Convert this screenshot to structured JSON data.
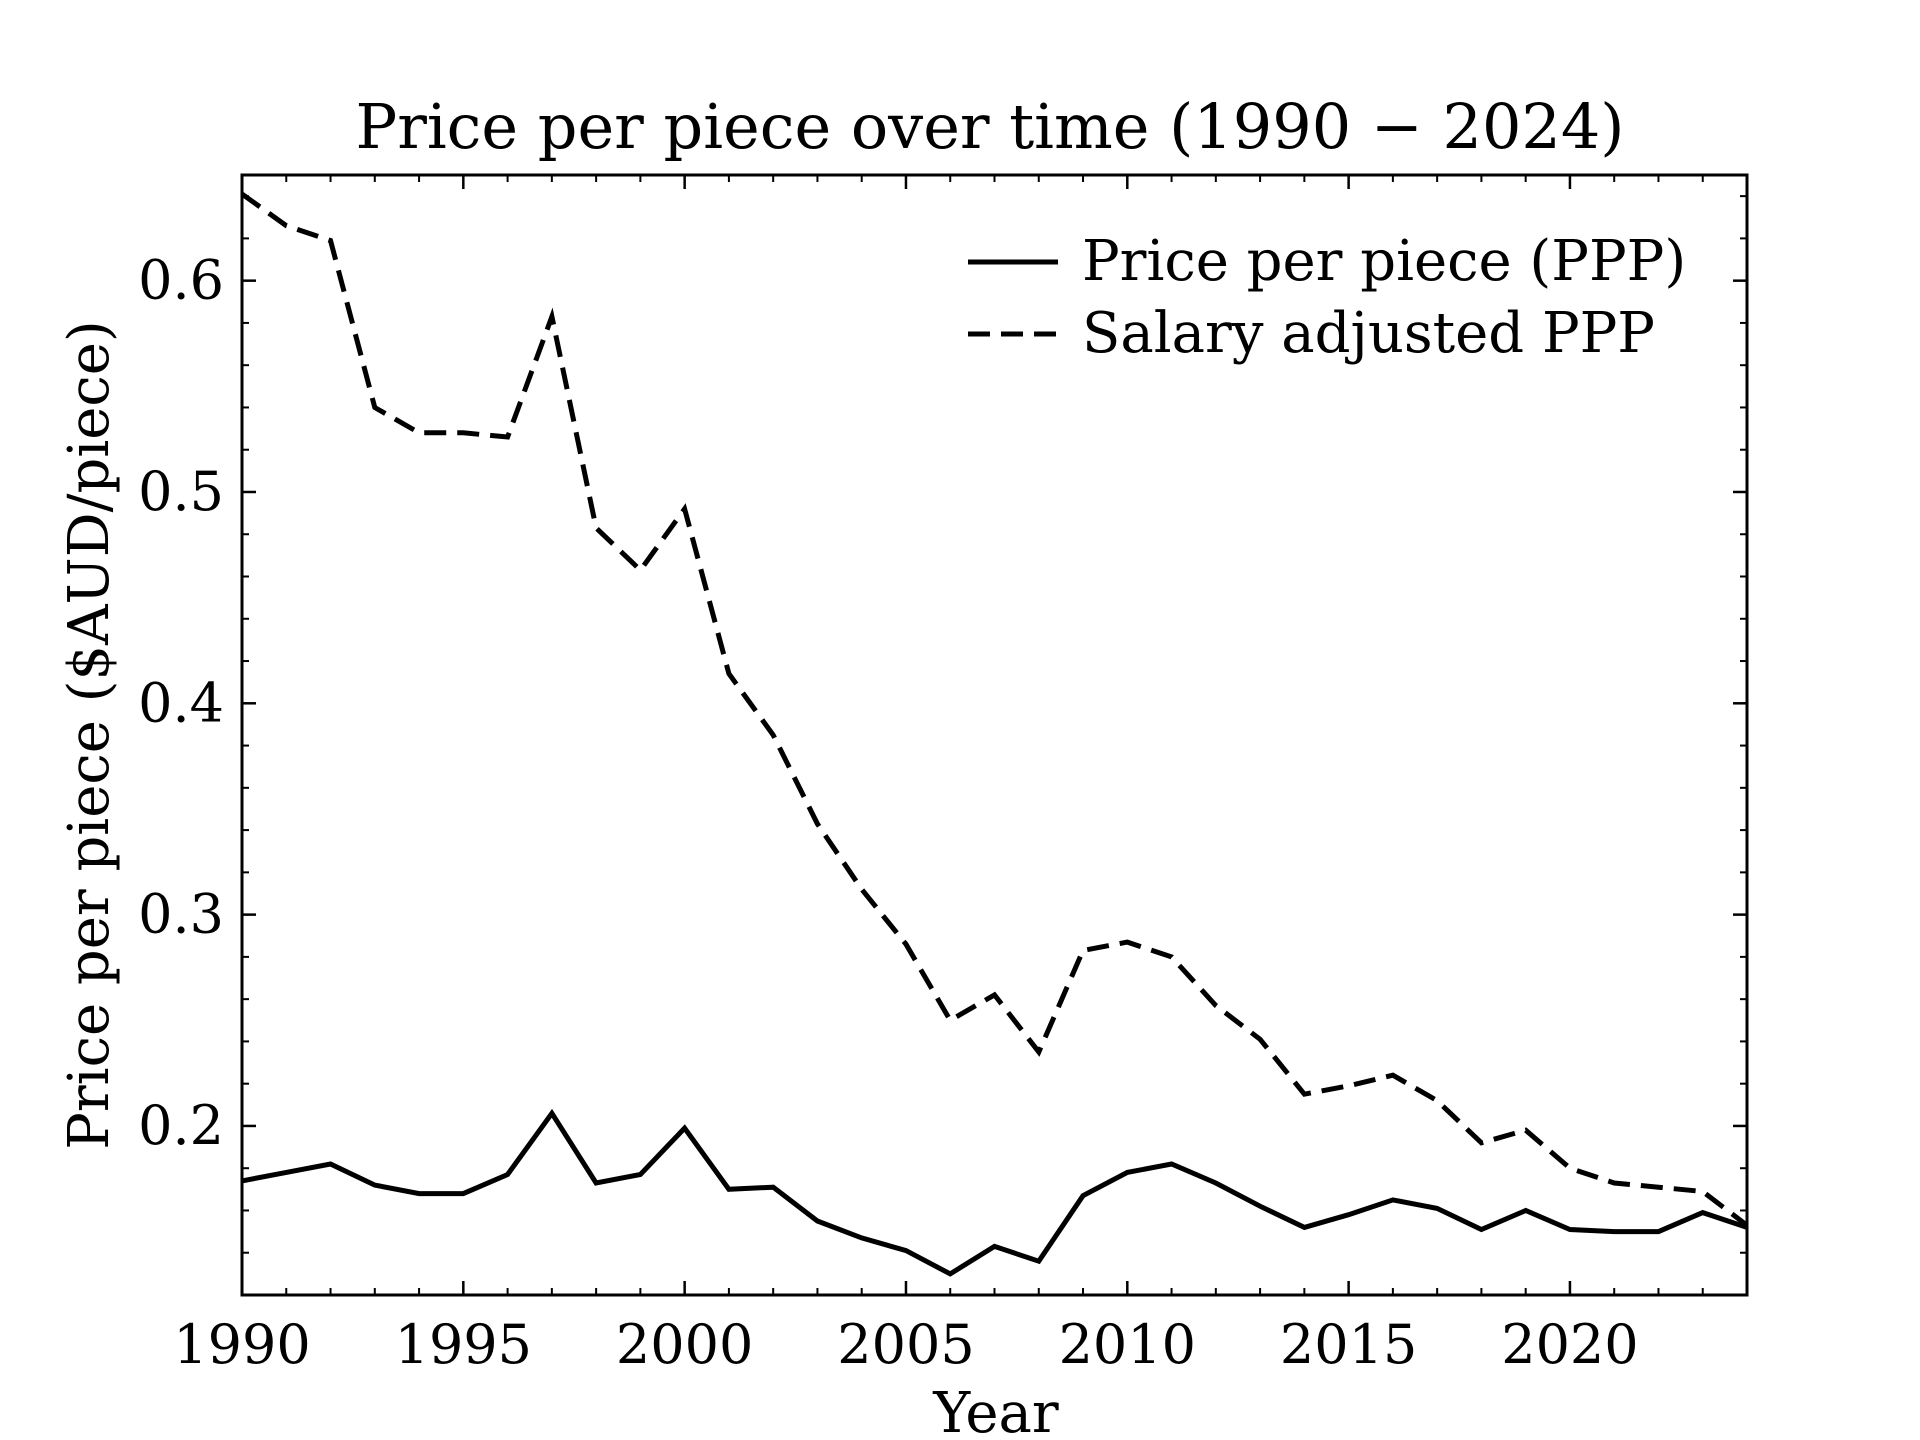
{
  "chart_data": {
    "type": "line",
    "title": "Price per piece over time (1990 − 2024)",
    "xlabel": "Year",
    "ylabel": "Price per piece ($AUD/piece)",
    "xlim": [
      1990,
      2024
    ],
    "ylim": [
      0.12,
      0.65
    ],
    "x_ticks": [
      1990,
      1995,
      2000,
      2005,
      2010,
      2015,
      2020
    ],
    "x_tick_labels": [
      "1990",
      "1995",
      "2000",
      "2005",
      "2010",
      "2015",
      "2020"
    ],
    "y_ticks": [
      0.2,
      0.3,
      0.4,
      0.5,
      0.6
    ],
    "y_tick_labels": [
      "0.2",
      "0.3",
      "0.4",
      "0.5",
      "0.6"
    ],
    "grid": false,
    "legend": "top-right",
    "x": [
      1990,
      1991,
      1992,
      1993,
      1994,
      1995,
      1996,
      1997,
      1998,
      1999,
      2000,
      2001,
      2002,
      2003,
      2004,
      2005,
      2006,
      2007,
      2008,
      2009,
      2010,
      2011,
      2012,
      2013,
      2014,
      2015,
      2016,
      2017,
      2018,
      2019,
      2020,
      2021,
      2022,
      2023,
      2024
    ],
    "series": [
      {
        "name": "Price per piece (PPP)",
        "style": "solid",
        "color": "#000000",
        "values": [
          0.174,
          0.178,
          0.182,
          0.172,
          0.168,
          0.168,
          0.177,
          0.206,
          0.173,
          0.177,
          0.199,
          0.17,
          0.171,
          0.155,
          0.147,
          0.141,
          0.13,
          0.143,
          0.136,
          0.167,
          0.178,
          0.182,
          0.173,
          0.162,
          0.152,
          0.158,
          0.165,
          0.161,
          0.151,
          0.16,
          0.151,
          0.15,
          0.15,
          0.159,
          0.152
        ]
      },
      {
        "name": "Salary adjusted PPP",
        "style": "dashed",
        "color": "#000000",
        "values": [
          0.641,
          0.626,
          0.619,
          0.54,
          0.528,
          0.528,
          0.526,
          0.583,
          0.483,
          0.463,
          0.492,
          0.414,
          0.385,
          0.343,
          0.312,
          0.286,
          0.25,
          0.262,
          0.235,
          0.283,
          0.287,
          0.28,
          0.257,
          0.241,
          0.215,
          0.219,
          0.224,
          0.212,
          0.192,
          0.198,
          0.18,
          0.173,
          0.171,
          0.169,
          0.153
        ]
      }
    ]
  }
}
